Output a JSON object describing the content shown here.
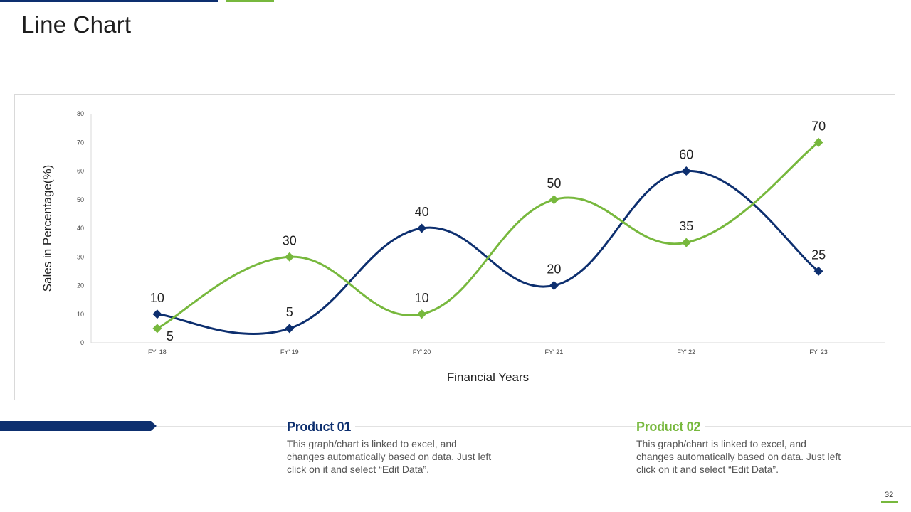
{
  "slide": {
    "title": "Line Chart",
    "page_number": "32"
  },
  "products": [
    {
      "name": "Product 01",
      "description": "This graph/chart is linked to excel, and changes automatically based on data. Just left click on it and select “Edit Data”.",
      "color": "#0d2f6f"
    },
    {
      "name": "Product 02",
      "description": "This graph/chart is linked to excel, and changes automatically based on data. Just left click on it and select “Edit Data”.",
      "color": "#77b83d"
    }
  ],
  "chart_data": {
    "type": "line",
    "smooth": true,
    "categories": [
      "FY' 18",
      "FY' 19",
      "FY' 20",
      "FY' 21",
      "FY' 22",
      "FY' 23"
    ],
    "series": [
      {
        "values": [
          10,
          5,
          40,
          20,
          60,
          25
        ],
        "color": "#0d2f6f",
        "marker": "diamond"
      },
      {
        "values": [
          5,
          30,
          10,
          50,
          35,
          70
        ],
        "color": "#77b83d",
        "marker": "diamond"
      }
    ],
    "xlabel": "Financial Years",
    "ylabel": "Sales in Percentage(%)",
    "ylim": [
      0,
      80
    ],
    "yticks": [
      0,
      10,
      20,
      30,
      40,
      50,
      60,
      70,
      80
    ],
    "grid": false,
    "legend": "none",
    "data_labels": true
  }
}
